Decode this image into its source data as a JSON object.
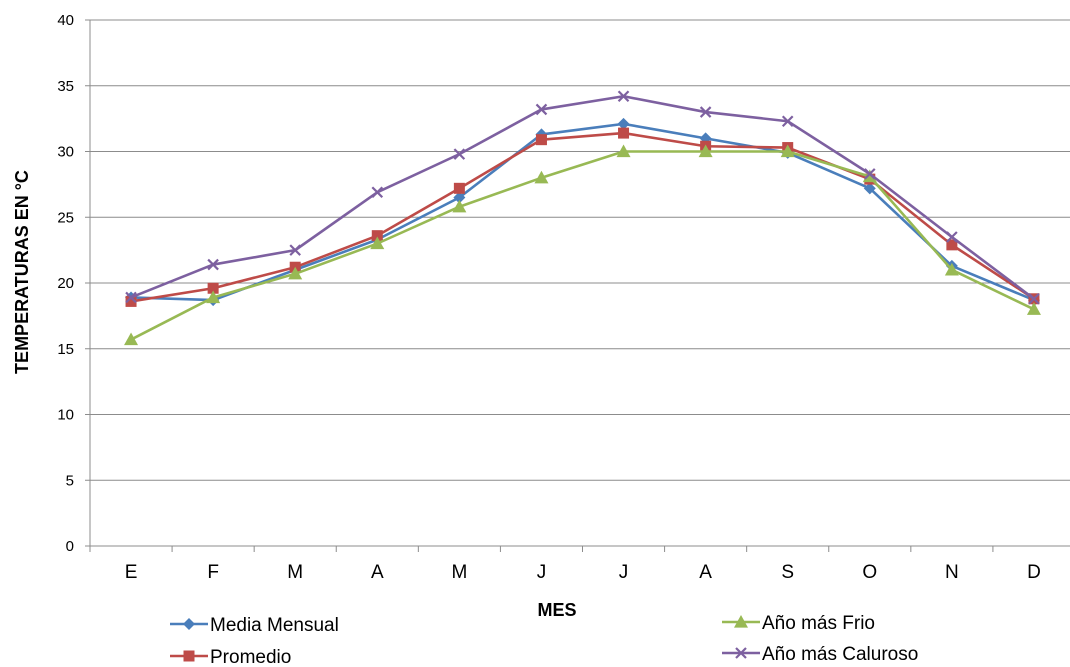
{
  "chart_data": {
    "type": "line",
    "title": "",
    "xlabel": "MES",
    "ylabel": "TEMPERATURAS EN °C",
    "ylim": [
      0,
      40
    ],
    "yticks": [
      0,
      5,
      10,
      15,
      20,
      25,
      30,
      35,
      40
    ],
    "categories": [
      "E",
      "F",
      "M",
      "A",
      "M",
      "J",
      "J",
      "A",
      "S",
      "O",
      "N",
      "D"
    ],
    "grid": "horizontal",
    "legend_position": "bottom",
    "series": [
      {
        "name": "Media Mensual",
        "color": "#4a7ebb",
        "marker": "diamond",
        "values": [
          18.9,
          18.7,
          21.0,
          23.3,
          26.5,
          31.3,
          32.1,
          31.0,
          29.9,
          27.2,
          21.3,
          18.7
        ]
      },
      {
        "name": "Promedio",
        "color": "#be4b48",
        "marker": "square",
        "values": [
          18.6,
          19.6,
          21.2,
          23.6,
          27.2,
          30.9,
          31.4,
          30.4,
          30.3,
          27.9,
          22.9,
          18.8
        ]
      },
      {
        "name": "Año más Frio",
        "color": "#98b954",
        "marker": "triangle",
        "values": [
          15.7,
          18.9,
          20.7,
          23.0,
          25.8,
          28.0,
          30.0,
          30.0,
          30.0,
          28.1,
          21.0,
          18.0
        ]
      },
      {
        "name": "Año más Caluroso",
        "color": "#7d60a0",
        "marker": "x",
        "values": [
          18.9,
          21.4,
          22.5,
          26.9,
          29.8,
          33.2,
          34.2,
          33.0,
          32.3,
          28.3,
          23.5,
          18.8
        ]
      }
    ]
  }
}
